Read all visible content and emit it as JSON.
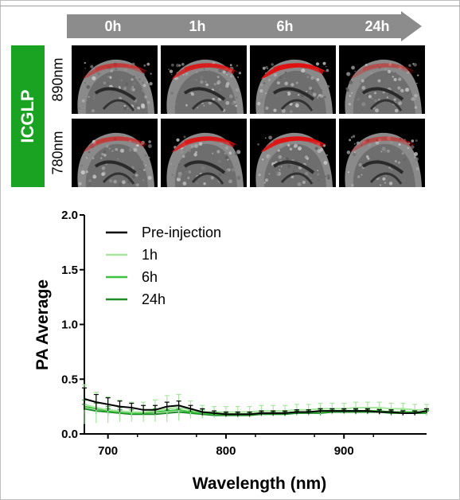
{
  "timepoints": [
    "0h",
    "1h",
    "6h",
    "24h"
  ],
  "agent_label": "ICGLP",
  "wavelength_rows": [
    "890nm",
    "780nm"
  ],
  "colors": {
    "agent_bg": "#1aa322",
    "arrow": "#8c8c8c",
    "pre": "#000000",
    "h1": "#a8e6a0",
    "h6": "#3cc43c",
    "h24": "#1f8c2a",
    "signal": "#e01010"
  },
  "chart_data": {
    "type": "line",
    "xlabel": "Wavelength (nm)",
    "ylabel": "PA Average",
    "xlim": [
      680,
      970
    ],
    "ylim": [
      0.0,
      2.0
    ],
    "xticks": [
      700,
      800,
      900
    ],
    "yticks": [
      0.0,
      0.5,
      1.0,
      1.5,
      2.0
    ],
    "ytick_labels": [
      "0.0",
      "0.5",
      "1.0",
      "1.5",
      "2.0"
    ],
    "legend_position": "top-left",
    "x": [
      680,
      690,
      700,
      710,
      720,
      730,
      740,
      750,
      760,
      770,
      780,
      790,
      800,
      810,
      820,
      830,
      840,
      850,
      860,
      870,
      880,
      890,
      900,
      910,
      920,
      930,
      940,
      950,
      960,
      970
    ],
    "series": [
      {
        "name": "Pre-injection",
        "color": "#000000",
        "values": [
          0.32,
          0.29,
          0.27,
          0.25,
          0.24,
          0.22,
          0.22,
          0.25,
          0.26,
          0.23,
          0.2,
          0.19,
          0.18,
          0.18,
          0.18,
          0.19,
          0.19,
          0.19,
          0.2,
          0.2,
          0.21,
          0.21,
          0.21,
          0.21,
          0.21,
          0.2,
          0.2,
          0.19,
          0.19,
          0.21
        ],
        "errors": [
          0.1,
          0.07,
          0.06,
          0.05,
          0.04,
          0.04,
          0.04,
          0.04,
          0.04,
          0.03,
          0.03,
          0.02,
          0.02,
          0.02,
          0.02,
          0.02,
          0.02,
          0.02,
          0.02,
          0.02,
          0.02,
          0.02,
          0.02,
          0.02,
          0.02,
          0.02,
          0.02,
          0.02,
          0.02,
          0.02
        ]
      },
      {
        "name": "1h",
        "color": "#a8e6a0",
        "values": [
          0.27,
          0.24,
          0.22,
          0.21,
          0.2,
          0.2,
          0.21,
          0.23,
          0.24,
          0.22,
          0.2,
          0.2,
          0.2,
          0.2,
          0.2,
          0.21,
          0.21,
          0.21,
          0.22,
          0.22,
          0.23,
          0.23,
          0.23,
          0.24,
          0.24,
          0.24,
          0.23,
          0.23,
          0.22,
          0.22
        ],
        "errors": [
          0.18,
          0.14,
          0.12,
          0.1,
          0.09,
          0.09,
          0.1,
          0.12,
          0.12,
          0.08,
          0.06,
          0.05,
          0.05,
          0.05,
          0.05,
          0.05,
          0.05,
          0.05,
          0.05,
          0.05,
          0.05,
          0.05,
          0.05,
          0.05,
          0.05,
          0.05,
          0.05,
          0.05,
          0.05,
          0.05
        ]
      },
      {
        "name": "6h",
        "color": "#3cc43c",
        "values": [
          0.25,
          0.23,
          0.21,
          0.2,
          0.19,
          0.19,
          0.2,
          0.21,
          0.22,
          0.2,
          0.19,
          0.18,
          0.18,
          0.18,
          0.18,
          0.19,
          0.19,
          0.19,
          0.2,
          0.2,
          0.2,
          0.21,
          0.21,
          0.21,
          0.21,
          0.21,
          0.2,
          0.2,
          0.2,
          0.2
        ],
        "errors": [
          0.06,
          0.05,
          0.04,
          0.04,
          0.03,
          0.03,
          0.03,
          0.04,
          0.04,
          0.03,
          0.03,
          0.02,
          0.02,
          0.02,
          0.02,
          0.02,
          0.02,
          0.02,
          0.02,
          0.02,
          0.02,
          0.02,
          0.02,
          0.02,
          0.02,
          0.02,
          0.02,
          0.02,
          0.02,
          0.02
        ]
      },
      {
        "name": "24h",
        "color": "#1f8c2a",
        "values": [
          0.23,
          0.21,
          0.2,
          0.19,
          0.18,
          0.18,
          0.18,
          0.19,
          0.2,
          0.19,
          0.18,
          0.17,
          0.17,
          0.17,
          0.17,
          0.18,
          0.18,
          0.18,
          0.19,
          0.19,
          0.19,
          0.2,
          0.2,
          0.2,
          0.2,
          0.2,
          0.19,
          0.19,
          0.19,
          0.19
        ],
        "errors": [
          0.04,
          0.03,
          0.03,
          0.03,
          0.02,
          0.02,
          0.02,
          0.03,
          0.03,
          0.02,
          0.02,
          0.02,
          0.02,
          0.02,
          0.02,
          0.02,
          0.02,
          0.02,
          0.02,
          0.02,
          0.02,
          0.02,
          0.02,
          0.02,
          0.02,
          0.02,
          0.02,
          0.02,
          0.02,
          0.02
        ]
      }
    ]
  }
}
